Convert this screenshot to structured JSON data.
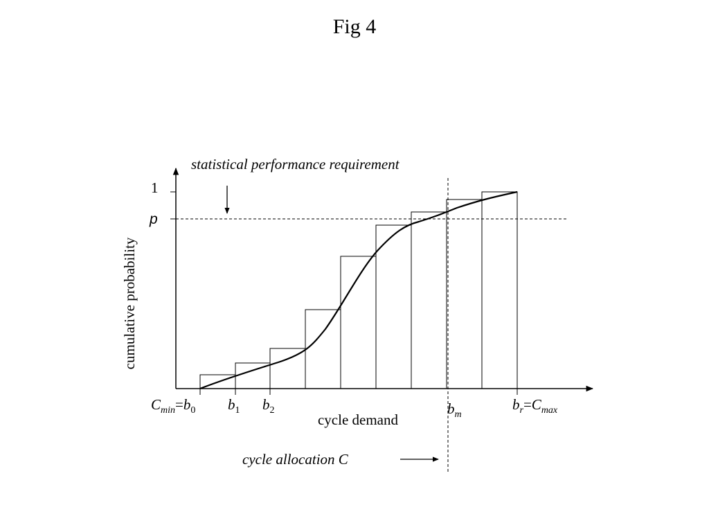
{
  "slide": {
    "title": "Fig 4"
  },
  "diagram": {
    "y_axis_label": "cumulative probability",
    "x_axis_label": "cycle demand",
    "y_tick_one": "1",
    "y_tick_p": "p",
    "requirement_label": "statistical performance requirement",
    "allocation_label": "cycle allocation C",
    "x_ticks": {
      "b0": {
        "lhs": "C",
        "lhs_sub": "min",
        "eq": "=",
        "b": "b",
        "b_sub": "0"
      },
      "b1": {
        "b": "b",
        "b_sub": "1"
      },
      "b2": {
        "b": "b",
        "b_sub": "2"
      },
      "bm": {
        "b": "b",
        "b_sub": "m"
      },
      "br": {
        "b": "b",
        "b_sub": "r",
        "eq": "=",
        "rhs": "C",
        "rhs_sub": "max"
      }
    }
  }
}
